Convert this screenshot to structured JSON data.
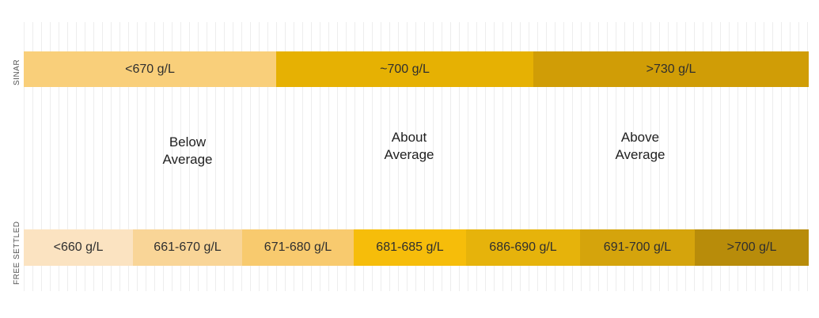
{
  "rows": {
    "sinar": {
      "label": "SINAR",
      "segments": [
        {
          "label": "<670 g/L",
          "color": "#f9cf7a"
        },
        {
          "label": "~700 g/L",
          "color": "#e6b103"
        },
        {
          "label": ">730 g/L",
          "color": "#d09d06"
        }
      ]
    },
    "free_settled": {
      "label": "FREE SETTLED",
      "segments": [
        {
          "label": "<660 g/L",
          "color": "#fbe3c1"
        },
        {
          "label": "661-670 g/L",
          "color": "#f9d597"
        },
        {
          "label": "671-680 g/L",
          "color": "#f8ca6e"
        },
        {
          "label": "681-685 g/L",
          "color": "#f6bd0a"
        },
        {
          "label": "686-690 g/L",
          "color": "#e6b30b"
        },
        {
          "label": "691-700 g/L",
          "color": "#d5a40c"
        },
        {
          "label": ">700 g/L",
          "color": "#b88c0a"
        }
      ]
    }
  },
  "categories": [
    {
      "line1": "Below",
      "line2": "Average"
    },
    {
      "line1": "About",
      "line2": "Average"
    },
    {
      "line1": "Above",
      "line2": "Average"
    }
  ]
}
